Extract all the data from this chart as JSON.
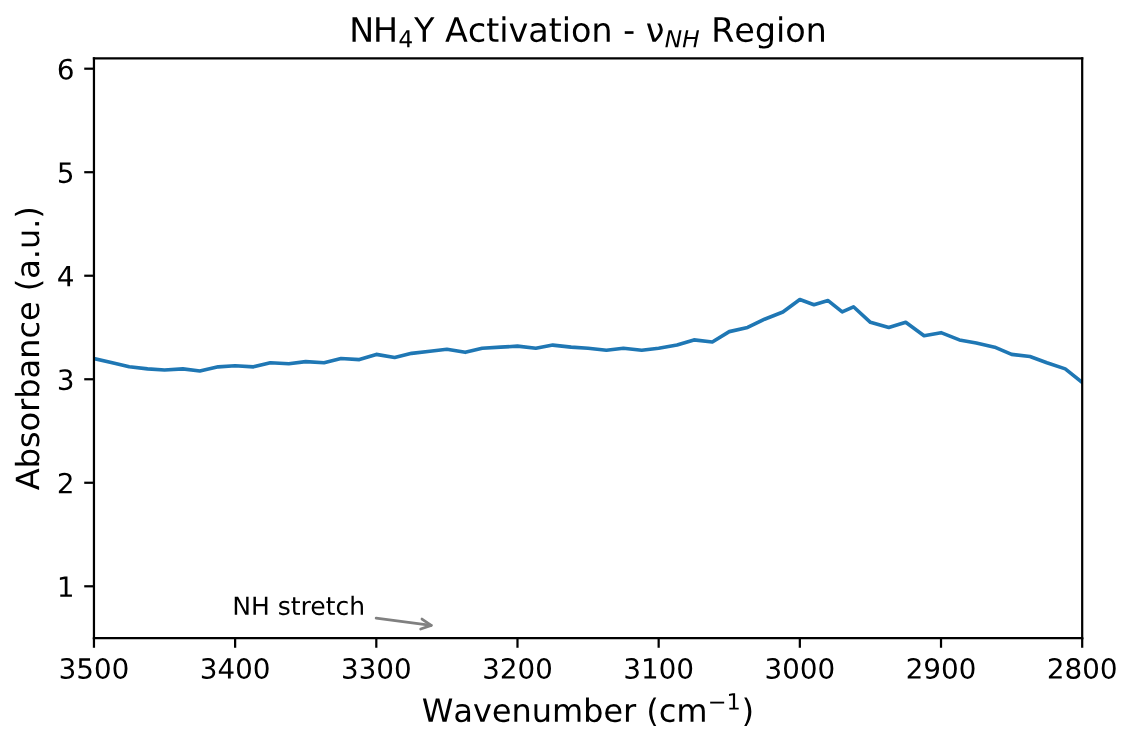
{
  "chart_data": {
    "type": "line",
    "title": "NH$_{4}$Y Activation - ν$_{NH}$ Region",
    "xlabel": "Wavenumber (cm$^{−1}$)",
    "ylabel": "Absorbance (a.u.)",
    "x": [
      3500,
      3487,
      3475,
      3462,
      3450,
      3437,
      3425,
      3412,
      3400,
      3387,
      3375,
      3362,
      3350,
      3337,
      3325,
      3312,
      3300,
      3287,
      3275,
      3262,
      3250,
      3237,
      3225,
      3212,
      3200,
      3187,
      3175,
      3162,
      3150,
      3137,
      3125,
      3112,
      3100,
      3087,
      3075,
      3062,
      3050,
      3037,
      3025,
      3012,
      3000,
      2990,
      2980,
      2970,
      2962,
      2950,
      2937,
      2925,
      2912,
      2900,
      2887,
      2875,
      2862,
      2850,
      2837,
      2825,
      2812,
      2800
    ],
    "series": [
      {
        "color": "#1f77b4",
        "values": [
          3.2,
          3.16,
          3.12,
          3.1,
          3.09,
          3.1,
          3.08,
          3.12,
          3.13,
          3.12,
          3.16,
          3.15,
          3.17,
          3.16,
          3.2,
          3.19,
          3.24,
          3.21,
          3.25,
          3.27,
          3.29,
          3.26,
          3.3,
          3.31,
          3.32,
          3.3,
          3.33,
          3.31,
          3.3,
          3.28,
          3.3,
          3.28,
          3.3,
          3.33,
          3.38,
          3.36,
          3.46,
          3.5,
          3.58,
          3.65,
          3.77,
          3.72,
          3.76,
          3.65,
          3.7,
          3.55,
          3.5,
          3.55,
          3.42,
          3.45,
          3.38,
          3.35,
          3.31,
          3.24,
          3.22,
          3.16,
          3.1,
          2.97
        ]
      }
    ],
    "xlim": [
      3500,
      2800
    ],
    "xticks": [
      3500,
      3400,
      3300,
      3200,
      3100,
      3000,
      2900,
      2800
    ],
    "ylim": [
      0.5,
      6.1
    ],
    "yticks": [
      1,
      2,
      3,
      4,
      5,
      6
    ],
    "grid": false,
    "marker": "none",
    "line_style": "solid",
    "annotations": [
      "NH stretch"
    ]
  }
}
